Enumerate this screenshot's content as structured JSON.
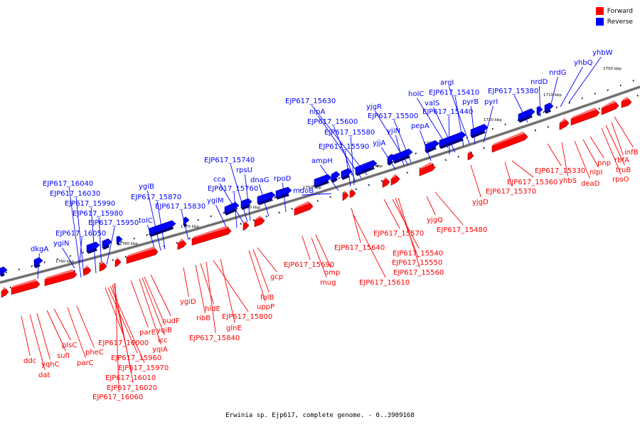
{
  "legend": {
    "forward_label": "Forward",
    "reverse_label": "Reverse",
    "forward_color": "#ff0000",
    "reverse_color": "#0000ff"
  },
  "caption": "Erwinia sp. Ejp617, complete genome. - 0..3909168",
  "axis_color": "#666666",
  "ticks": [
    {
      "label": "1790 kbp"
    },
    {
      "label": "1780 kbp"
    },
    {
      "label": "1770 kbp"
    },
    {
      "label": "1760 kbp"
    },
    {
      "label": "1750 kbp"
    },
    {
      "label": "1740 kbp"
    },
    {
      "label": "1730 kbp"
    },
    {
      "label": "1720 kbp"
    },
    {
      "label": "1710 kbp"
    },
    {
      "label": "1700 kbp"
    }
  ],
  "reverse_genes": [
    "dkgA",
    "ygiN",
    "EJP617_16050",
    "EJP617_15950",
    "EJP617_15980",
    "EJP617_15990",
    "EJP617_16030",
    "EJP617_16040",
    "tolC",
    "ygiB",
    "EJP617_15870",
    "EJP617_15830",
    "ygiM",
    "EJP617_15760",
    "cca",
    "EJP617_15740",
    "rpsU",
    "dnaG",
    "rpoD",
    "mdoB",
    "ampH",
    "EJP617_15590",
    "EJP617_15580",
    "EJP617_15600",
    "nlpA",
    "EJP617_15630",
    "yjjA",
    "yjiN",
    "EJP617_15500",
    "yjgR",
    "pepA",
    "EJP617_15440",
    "valS",
    "holC",
    "EJP617_15410",
    "argI",
    "pyrB",
    "pyrI",
    "EJP617_15380",
    "nrdD",
    "nrdG",
    "yhbQ",
    "yhbW"
  ],
  "forward_genes": [
    "ddc",
    "dat",
    "yqhC",
    "sufI",
    "plsC",
    "parC",
    "pheC",
    "EJP617_16000",
    "EJP617_15960",
    "EJP617_15970",
    "EJP617_16010",
    "EJP617_16020",
    "EJP617_16060",
    "yqiA",
    "icc",
    "yqiB",
    "parE",
    "nudF",
    "ygiD",
    "ribB",
    "hldE",
    "EJP617_15840",
    "glnE",
    "EJP617_15800",
    "uppP",
    "folB",
    "gcp",
    "EJP617_15690",
    "omp",
    "mug",
    "EJP617_15640",
    "EJP617_15610",
    "EJP617_15570",
    "EJP617_15540",
    "EJP617_15550",
    "EJP617_15560",
    "yjgQ",
    "EJP617_15480",
    "yjgD",
    "EJP617_15370",
    "EJP617_15360",
    "EJP617_15330",
    "yhbS",
    "deaD",
    "nlpI",
    "pnp",
    "rpsO",
    "truB",
    "rbfA",
    "infB"
  ]
}
